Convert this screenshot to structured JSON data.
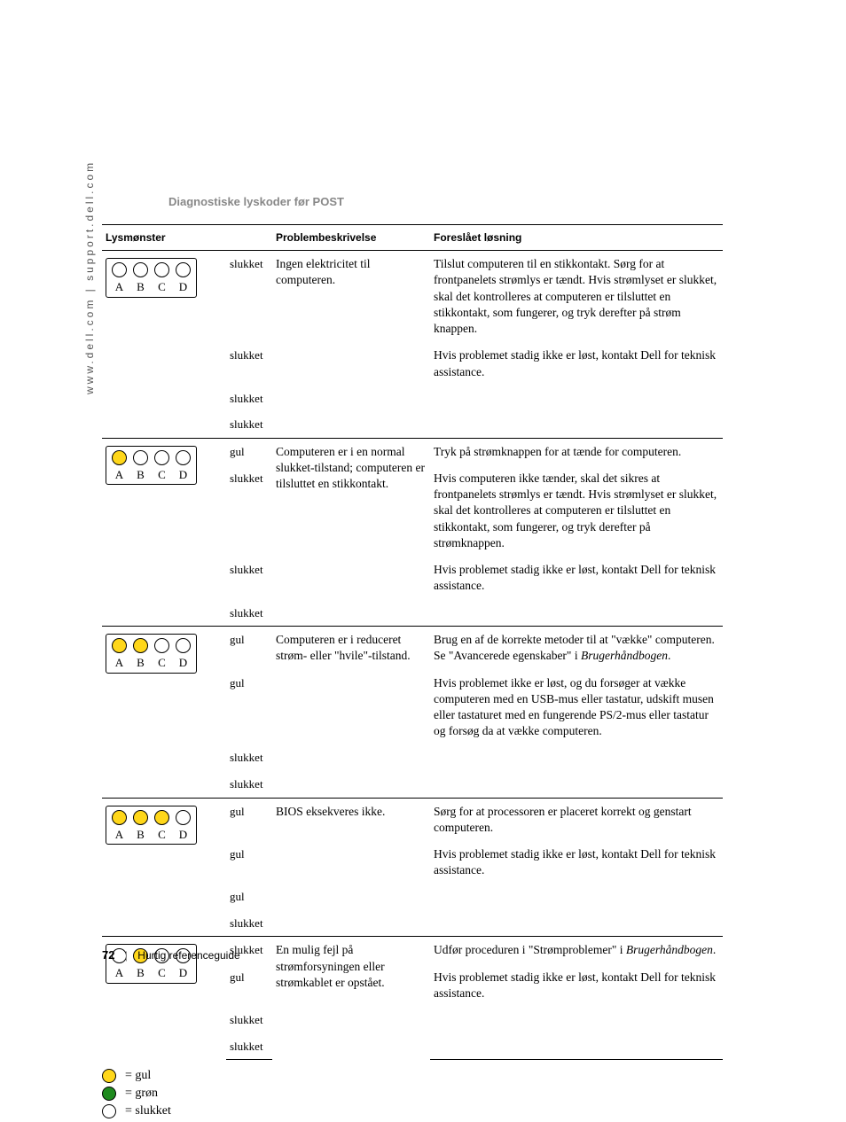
{
  "side_text": "www.dell.com | support.dell.com",
  "section_title": "Diagnostiske lyskoder før POST",
  "headers": {
    "pattern": "Lysmønster",
    "desc": "Problembeskrivelse",
    "solution": "Foreslået løsning"
  },
  "led_labels": [
    "A",
    "B",
    "C",
    "D"
  ],
  "state_names": {
    "off": "slukket",
    "yellow": "gul",
    "green": "grøn"
  },
  "rows": [
    {
      "leds": [
        "off",
        "off",
        "off",
        "off"
      ],
      "desc": "Ingen elektricitet til computeren.",
      "solutions": [
        "Tilslut computeren til en stikkontakt. Sørg for at frontpanelets strømlys er tændt. Hvis strømlyset er slukket, skal det kontrolleres at computeren er tilsluttet en stikkontakt, som fungerer, og tryk derefter på strøm knappen.",
        "Hvis problemet stadig ikke er løst, kontakt Dell for teknisk assistance."
      ]
    },
    {
      "leds": [
        "yellow",
        "off",
        "off",
        "off"
      ],
      "desc": "Computeren er i en normal slukket-tilstand; computeren er tilsluttet en stikkontakt.",
      "solutions": [
        "Tryk på strømknappen for at tænde for computeren.",
        "Hvis computeren ikke tænder, skal det sikres at frontpanelets strømlys er tændt. Hvis strømlyset er slukket, skal det kontrolleres at computeren er tilsluttet en stikkontakt, som fungerer, og tryk derefter på strømknappen.",
        "Hvis problemet stadig ikke er løst, kontakt Dell for teknisk assistance."
      ]
    },
    {
      "leds": [
        "yellow",
        "yellow",
        "off",
        "off"
      ],
      "desc": "Computeren er i reduceret strøm- eller \"hvile\"-tilstand.",
      "solutions": [
        "Brug en af de korrekte metoder til at \"vække\" computeren. Se \"Avancerede egenskaber\" i <em class='bh'>Brugerhåndbogen</em>.",
        "Hvis problemet ikke er løst, og du forsøger at vække computeren med en USB-mus eller tastatur, udskift musen eller tastaturet med en fungerende PS/2-mus eller tastatur og forsøg da at vække computeren."
      ]
    },
    {
      "leds": [
        "yellow",
        "yellow",
        "yellow",
        "off"
      ],
      "desc": "BIOS eksekveres ikke.",
      "solutions": [
        "Sørg for at processoren er placeret korrekt og genstart computeren.",
        "Hvis problemet stadig ikke er løst, kontakt Dell for teknisk assistance."
      ]
    },
    {
      "leds": [
        "off",
        "yellow",
        "off",
        "off"
      ],
      "desc": "En mulig fejl på strømforsyningen eller strømkablet er opstået.",
      "solutions": [
        "Udfør proceduren i \"Strømproblemer\" i <em class='bh'>Brugerhåndbogen</em>.",
        "Hvis problemet stadig ikke er løst, kontakt Dell for teknisk assistance."
      ]
    }
  ],
  "legend": [
    {
      "state": "yellow",
      "label": "= gul"
    },
    {
      "state": "green",
      "label": "= grøn"
    },
    {
      "state": "off",
      "label": "= slukket"
    }
  ],
  "footer": {
    "page": "72",
    "title": "Hurtig referenceguide"
  }
}
